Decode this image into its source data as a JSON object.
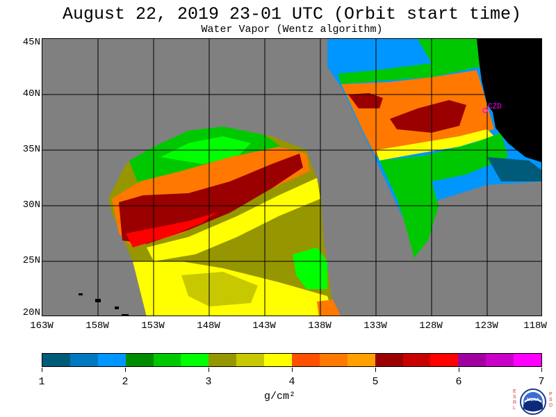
{
  "header": {
    "title": "August 22, 2019  23-01 UTC  (Orbit start time)",
    "subtitle": "Water Vapor (Wentz algorithm)"
  },
  "map": {
    "lat_labels": [
      "45N",
      "40N",
      "35N",
      "30N",
      "25N",
      "20N"
    ],
    "lon_labels": [
      "163W",
      "158W",
      "153W",
      "148W",
      "143W",
      "138W",
      "133W",
      "128W",
      "123W",
      "118W"
    ],
    "marker_label": "CZD",
    "marker_color": "#ff00ff",
    "background_color": "#808080",
    "land_color": "#000000"
  },
  "colorbar": {
    "colors": [
      "#005a7a",
      "#0078c0",
      "#0096ff",
      "#008c00",
      "#00c800",
      "#00ff00",
      "#969600",
      "#c8c800",
      "#ffff00",
      "#ff5000",
      "#ff7800",
      "#ffa000",
      "#9a0000",
      "#c80000",
      "#ff0000",
      "#a000a0",
      "#c800c8",
      "#ff00ff"
    ],
    "tick_labels": [
      "1",
      "2",
      "3",
      "4",
      "5",
      "6",
      "7"
    ],
    "units": "g/cm²"
  },
  "logo": {
    "left_letters": [
      "E",
      "S",
      "R",
      "L"
    ],
    "right_letters": [
      "P",
      "S",
      "D"
    ],
    "badge_text": "NOAA"
  }
}
